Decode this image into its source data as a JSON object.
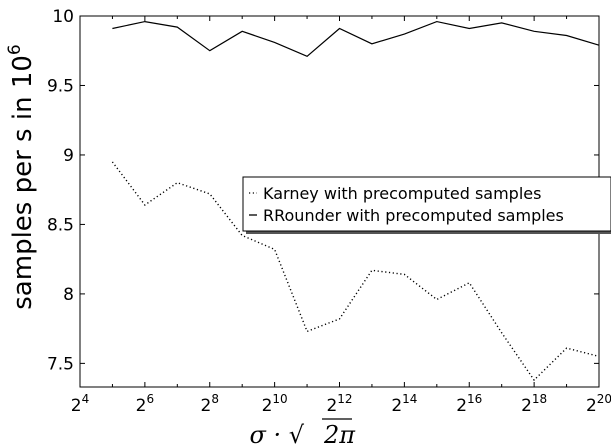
{
  "chart_data": {
    "type": "line",
    "title": "",
    "xlabel": {
      "prefix": "σ · √",
      "radicand": "2π"
    },
    "ylabel": {
      "text": "samples per s in 10",
      "exponent": "6"
    },
    "x_scale": "log2",
    "xlim_exponents": [
      4,
      20
    ],
    "ylim": [
      7.33,
      10
    ],
    "x_ticks": [
      {
        "base": "2",
        "exp": "4",
        "value": 4
      },
      {
        "base": "2",
        "exp": "6",
        "value": 6
      },
      {
        "base": "2",
        "exp": "8",
        "value": 8
      },
      {
        "base": "2",
        "exp": "10",
        "value": 10
      },
      {
        "base": "2",
        "exp": "12",
        "value": 12
      },
      {
        "base": "2",
        "exp": "14",
        "value": 14
      },
      {
        "base": "2",
        "exp": "16",
        "value": 16
      },
      {
        "base": "2",
        "exp": "18",
        "value": 18
      },
      {
        "base": "2",
        "exp": "20",
        "value": 20
      }
    ],
    "y_ticks": [
      {
        "label": "7.5",
        "value": 7.5
      },
      {
        "label": "8",
        "value": 8
      },
      {
        "label": "8.5",
        "value": 8.5
      },
      {
        "label": "9",
        "value": 9
      },
      {
        "label": "9.5",
        "value": 9.5
      },
      {
        "label": "10",
        "value": 10
      }
    ],
    "x_exponents": [
      5,
      6,
      7,
      8,
      9,
      10,
      11,
      12,
      13,
      14,
      15,
      16,
      17,
      18,
      19,
      20
    ],
    "series": [
      {
        "name": "Karney with precomputed samples",
        "style": "dotted",
        "color": "#000000",
        "values": [
          8.95,
          8.64,
          8.8,
          8.72,
          8.42,
          8.32,
          7.73,
          7.82,
          8.17,
          8.14,
          7.96,
          8.08,
          7.72,
          7.38,
          7.61,
          7.55
        ]
      },
      {
        "name": "RRounder with precomputed samples",
        "style": "solid",
        "color": "#000000",
        "values": [
          9.91,
          9.96,
          9.92,
          9.75,
          9.89,
          9.81,
          9.71,
          9.91,
          9.8,
          9.87,
          9.96,
          9.91,
          9.95,
          9.89,
          9.86,
          9.79
        ]
      }
    ],
    "grid": false,
    "legend": {
      "placement": "center-right"
    }
  }
}
